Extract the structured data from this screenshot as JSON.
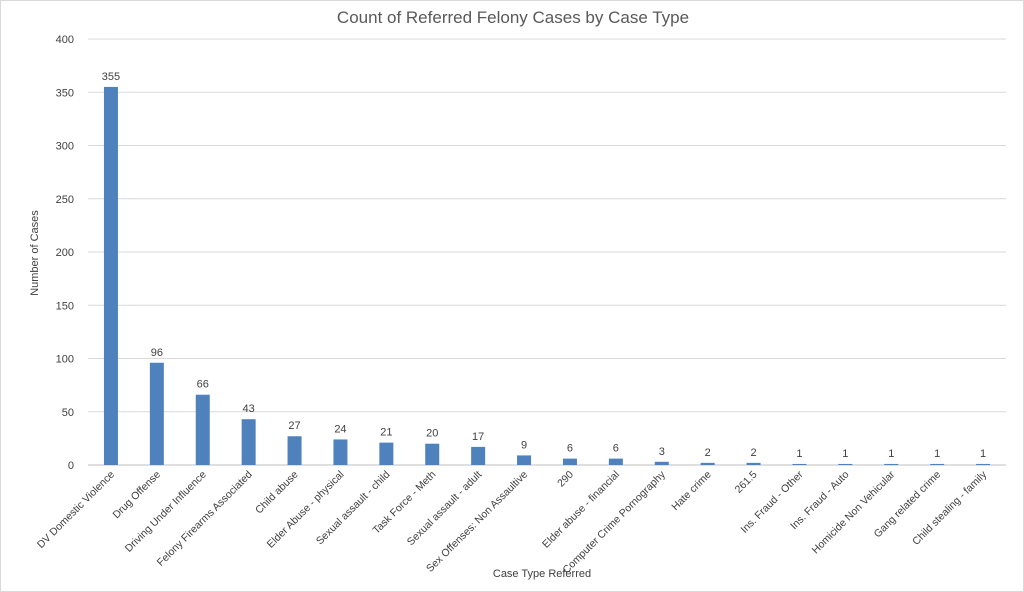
{
  "chart_data": {
    "type": "bar",
    "title": "Count of Referred Felony Cases by Case Type",
    "xlabel": "Case Type  Referred",
    "ylabel": "Number of Cases",
    "ylim": [
      0,
      400
    ],
    "yticks": [
      0,
      50,
      100,
      150,
      200,
      250,
      300,
      350,
      400
    ],
    "grid": true,
    "bar_color": "#4f81bd",
    "categories": [
      "DV Domestic Violence",
      "Drug Offense",
      "Driving Under Influence",
      "Felony Firearms Associated",
      "Child abuse",
      "Elder Abuse - physical",
      "Sexual assault - child",
      "Task Force - Meth",
      "Sexual assault - adult",
      "Sex Offenses: Non Assaultive",
      "290",
      "Elder abuse - financial",
      "Computer Crime Pornography",
      "Hate crime",
      "261.5",
      "Ins. Fraud - Other",
      "Ins. Fraud - Auto",
      "Homicide Non Vehicular",
      "Gang related crime",
      "Child stealing - family"
    ],
    "values": [
      355,
      96,
      66,
      43,
      27,
      24,
      21,
      20,
      17,
      9,
      6,
      6,
      3,
      2,
      2,
      1,
      1,
      1,
      1,
      1
    ],
    "data_labels": true
  }
}
